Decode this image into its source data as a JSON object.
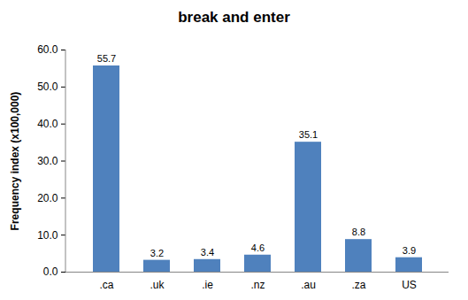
{
  "chart_data": {
    "type": "bar",
    "title": "break and enter",
    "y_label": "Frequency index (x100,000)",
    "categories": [
      ".ca",
      ".uk",
      ".ie",
      ".nz",
      ".au",
      ".za",
      "US"
    ],
    "values": [
      55.7,
      3.2,
      3.4,
      4.6,
      35.1,
      8.8,
      3.9
    ],
    "color": "#4f81bd",
    "ylim": [
      0,
      60
    ],
    "yticks": [
      {
        "value": 0,
        "label": "0.0"
      },
      {
        "value": 10,
        "label": "10.0"
      },
      {
        "value": 20,
        "label": "20.0"
      },
      {
        "value": 30,
        "label": "30.0"
      },
      {
        "value": 40,
        "label": "40.0"
      },
      {
        "value": 50,
        "label": "50.0"
      },
      {
        "value": 60,
        "label": "60.0"
      }
    ],
    "grid": false,
    "data_labels": true
  }
}
